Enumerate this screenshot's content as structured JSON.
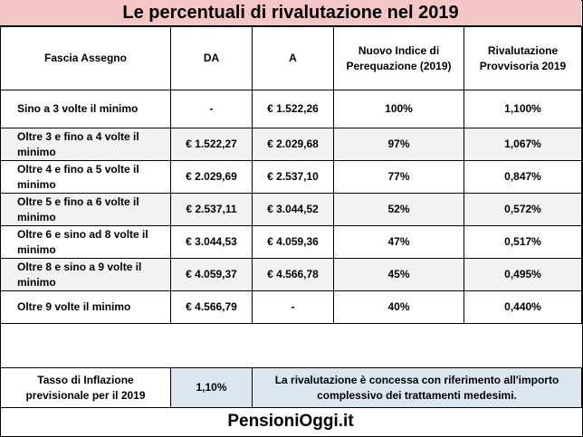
{
  "title": "Le percentuali di rivalutazione nel 2019",
  "headers": {
    "fascia": "Fascia Assegno",
    "da": "DA",
    "a": "A",
    "indice": "Nuovo Indice di Perequazione (2019)",
    "rivalutazione": "Rivalutazione Provvisoria 2019"
  },
  "rows": [
    {
      "fascia": "Sino a 3 volte il minimo",
      "da": "-",
      "a": "€ 1.522,26",
      "indice": "100%",
      "rivalutazione": "1,100%"
    },
    {
      "fascia": "Oltre 3 e fino a 4 volte il minimo",
      "da": "€ 1.522,27",
      "a": "€ 2.029,68",
      "indice": "97%",
      "rivalutazione": "1,067%"
    },
    {
      "fascia": "Oltre 4 e fino a 5 volte il minimo",
      "da": "€ 2.029,69",
      "a": "€ 2.537,10",
      "indice": "77%",
      "rivalutazione": "0,847%"
    },
    {
      "fascia": "Oltre 5 e fino a 6 volte il minimo",
      "da": "€ 2.537,11",
      "a": "€ 3.044,52",
      "indice": "52%",
      "rivalutazione": "0,572%"
    },
    {
      "fascia": "Oltre 6 e sino ad 8 volte il minimo",
      "da": "€ 3.044,53",
      "a": "€ 4.059,36",
      "indice": "47%",
      "rivalutazione": "0,517%"
    },
    {
      "fascia": "Oltre 8  e sino a 9 volte il minimo",
      "da": "€ 4.059,37",
      "a": "€ 4.566,78",
      "indice": "45%",
      "rivalutazione": "0,495%"
    },
    {
      "fascia": "Oltre 9 volte il minimo",
      "da": "€ 4.566,79",
      "a": "-",
      "indice": "40%",
      "rivalutazione": "0,440%"
    }
  ],
  "footer": {
    "inflazione_label": "Tasso di Inflazione previsionale per il 2019",
    "inflazione_value": "1,10%",
    "note": "La rivalutazione è concessa con riferimento all'importo complessivo dei trattamenti medesimi."
  },
  "brand": "PensioniOggi.it",
  "colors": {
    "title_bg": "#f4c6c6",
    "footer_bg": "#dce6f1",
    "row_shade": "#f2f2f2"
  }
}
